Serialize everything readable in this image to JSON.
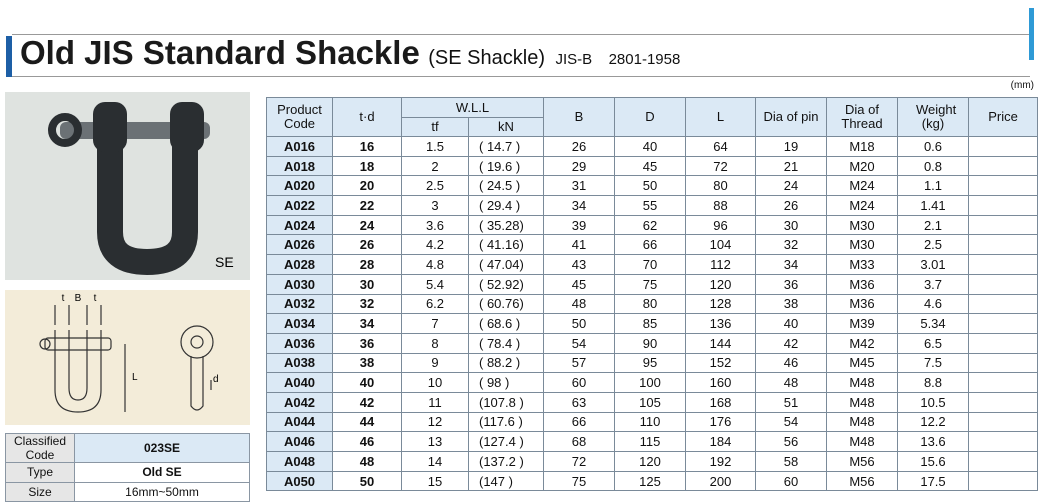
{
  "header": {
    "title": "Old JIS Standard Shackle",
    "subtitle": "(SE Shackle)",
    "standard_prefix": "JIS-B",
    "standard_number": "2801-1958"
  },
  "unit_note": "(mm)",
  "photo_label": "SE",
  "diagram_labels": {
    "t_left": "t",
    "b": "B",
    "t_right": "t",
    "l": "L",
    "d": "d"
  },
  "info_table": {
    "rows": [
      [
        "Classified Code",
        "023SE"
      ],
      [
        "Type",
        "Old SE"
      ],
      [
        "Size",
        "16mm~50mm"
      ]
    ]
  },
  "table": {
    "header": {
      "product_code": "Product Code",
      "td": "t·d",
      "wll": "W.L.L",
      "tf": "tf",
      "kn": "kN",
      "b": "B",
      "d": "D",
      "l": "L",
      "dia_pin": "Dia of pin",
      "dia_thread": "Dia of Thread",
      "weight": "Weight (kg)",
      "price": "Price"
    },
    "rows": [
      [
        "A016",
        "16",
        "1.5",
        "( 14.7 )",
        "26",
        "40",
        "64",
        "19",
        "M18",
        "0.6"
      ],
      [
        "A018",
        "18",
        "2",
        "( 19.6 )",
        "29",
        "45",
        "72",
        "21",
        "M20",
        "0.8"
      ],
      [
        "A020",
        "20",
        "2.5",
        "( 24.5 )",
        "31",
        "50",
        "80",
        "24",
        "M24",
        "1.1"
      ],
      [
        "A022",
        "22",
        "3",
        "( 29.4 )",
        "34",
        "55",
        "88",
        "26",
        "M24",
        "1.41"
      ],
      [
        "A024",
        "24",
        "3.6",
        "( 35.28)",
        "39",
        "62",
        "96",
        "30",
        "M30",
        "2.1"
      ],
      [
        "A026",
        "26",
        "4.2",
        "( 41.16)",
        "41",
        "66",
        "104",
        "32",
        "M30",
        "2.5"
      ],
      [
        "A028",
        "28",
        "4.8",
        "( 47.04)",
        "43",
        "70",
        "112",
        "34",
        "M33",
        "3.01"
      ],
      [
        "A030",
        "30",
        "5.4",
        "( 52.92)",
        "45",
        "75",
        "120",
        "36",
        "M36",
        "3.7"
      ],
      [
        "A032",
        "32",
        "6.2",
        "( 60.76)",
        "48",
        "80",
        "128",
        "38",
        "M36",
        "4.6"
      ],
      [
        "A034",
        "34",
        "7",
        "( 68.6 )",
        "50",
        "85",
        "136",
        "40",
        "M39",
        "5.34"
      ],
      [
        "A036",
        "36",
        "8",
        "( 78.4 )",
        "54",
        "90",
        "144",
        "42",
        "M42",
        "6.5"
      ],
      [
        "A038",
        "38",
        "9",
        "( 88.2 )",
        "57",
        "95",
        "152",
        "46",
        "M45",
        "7.5"
      ],
      [
        "A040",
        "40",
        "10",
        "( 98 )",
        "60",
        "100",
        "160",
        "48",
        "M48",
        "8.8"
      ],
      [
        "A042",
        "42",
        "11",
        "(107.8 )",
        "63",
        "105",
        "168",
        "51",
        "M48",
        "10.5"
      ],
      [
        "A044",
        "44",
        "12",
        "(117.6 )",
        "66",
        "110",
        "176",
        "54",
        "M48",
        "12.2"
      ],
      [
        "A046",
        "46",
        "13",
        "(127.4 )",
        "68",
        "115",
        "184",
        "56",
        "M48",
        "13.6"
      ],
      [
        "A048",
        "48",
        "14",
        "(137.2 )",
        "72",
        "120",
        "192",
        "58",
        "M56",
        "15.6"
      ],
      [
        "A050",
        "50",
        "15",
        "(147 )",
        "75",
        "125",
        "200",
        "60",
        "M56",
        "17.5"
      ]
    ]
  }
}
